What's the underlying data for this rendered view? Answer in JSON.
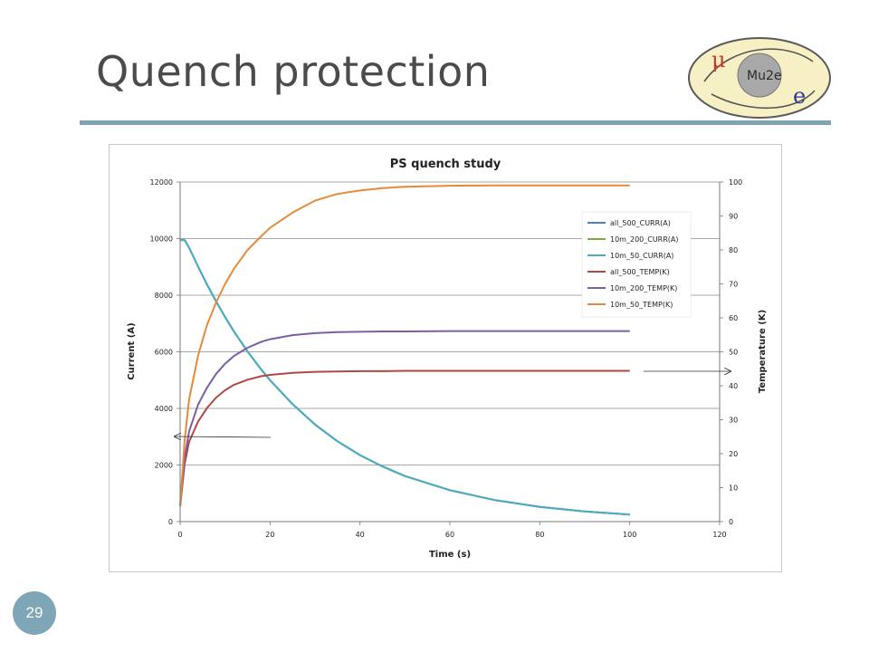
{
  "slide": {
    "title": "Quench protection",
    "page_number": "29",
    "logo": {
      "text": "Mu2e",
      "mu": "μ",
      "e": "e"
    }
  },
  "colors": {
    "all_500_CURR": "#4f7fbe",
    "10m_200_CURR": "#79ad45",
    "10m_50_CURR": "#4bacc6",
    "all_500_TEMP": "#b24743",
    "10m_200_TEMP": "#7b5fa5",
    "10m_50_TEMP": "#e68a3a",
    "rule": "#7fa3b2",
    "page_circle": "#7ea6b7"
  },
  "chart_data": {
    "type": "line",
    "title": "PS quench study",
    "xlabel": "Time (s)",
    "ylabel": "Current (A)",
    "y2label": "Temperature (K)",
    "xlim": [
      0,
      120
    ],
    "ylim": [
      0,
      12000
    ],
    "y2lim": [
      0,
      100
    ],
    "xticks": [
      0,
      20,
      40,
      60,
      80,
      100,
      120
    ],
    "yticks": [
      0,
      2000,
      4000,
      6000,
      8000,
      10000,
      12000
    ],
    "y2ticks": [
      0,
      10,
      20,
      30,
      40,
      50,
      60,
      70,
      80,
      90,
      100
    ],
    "grid": "horizontal",
    "legend": "top-right",
    "x": [
      0,
      1,
      2,
      4,
      6,
      8,
      10,
      12,
      15,
      18,
      20,
      25,
      30,
      35,
      40,
      45,
      50,
      60,
      70,
      80,
      90,
      100
    ],
    "series": [
      {
        "name": "all_500_CURR(A)",
        "axis": "left",
        "color": "#4f7fbe",
        "values": [
          9950,
          9950,
          9680,
          9010,
          8370,
          7780,
          7230,
          6710,
          6010,
          5380,
          5000,
          4150,
          3430,
          2840,
          2350,
          1950,
          1610,
          1110,
          760,
          520,
          360,
          250
        ]
      },
      {
        "name": "10m_200_CURR(A)",
        "axis": "left",
        "color": "#79ad45",
        "values": [
          9950,
          9950,
          9680,
          9010,
          8370,
          7780,
          7230,
          6710,
          6010,
          5380,
          5000,
          4150,
          3430,
          2840,
          2350,
          1950,
          1610,
          1110,
          760,
          520,
          360,
          250
        ]
      },
      {
        "name": "10m_50_CURR(A)",
        "axis": "left",
        "color": "#4bacc6",
        "values": [
          9950,
          9950,
          9680,
          9010,
          8370,
          7780,
          7230,
          6710,
          6010,
          5380,
          5000,
          4150,
          3430,
          2840,
          2350,
          1950,
          1610,
          1110,
          760,
          520,
          360,
          250
        ]
      },
      {
        "name": "all_500_TEMP(K)",
        "axis": "right",
        "color": "#b24743",
        "values": [
          4.5,
          17,
          23.5,
          29.5,
          33.5,
          36.5,
          38.7,
          40.3,
          41.8,
          42.8,
          43.2,
          43.8,
          44.1,
          44.2,
          44.3,
          44.3,
          44.4,
          44.4,
          44.4,
          44.4,
          44.4,
          44.4
        ]
      },
      {
        "name": "10m_200_TEMP(K)",
        "axis": "right",
        "color": "#7b5fa5",
        "values": [
          4.5,
          19,
          26.5,
          34.5,
          39.5,
          43.5,
          46.5,
          48.8,
          51.2,
          52.9,
          53.7,
          54.9,
          55.5,
          55.8,
          55.9,
          56,
          56,
          56.1,
          56.1,
          56.1,
          56.1,
          56.1
        ]
      },
      {
        "name": "10m_50_TEMP(K)",
        "axis": "right",
        "color": "#e68a3a",
        "values": [
          4.5,
          24,
          36,
          49,
          58,
          64.5,
          70,
          74.5,
          80,
          84,
          86.5,
          91,
          94.5,
          96.5,
          97.5,
          98.2,
          98.6,
          98.9,
          99,
          99,
          99,
          99
        ]
      }
    ]
  }
}
